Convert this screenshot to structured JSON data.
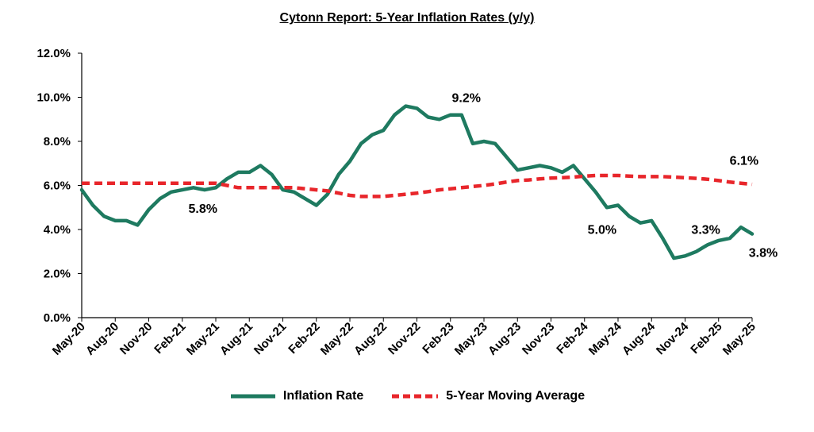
{
  "chart_data": {
    "type": "line",
    "title": "Cytonn Report: 5-Year Inflation Rates (y/y)",
    "xlabel": "",
    "ylabel": "",
    "ylim": [
      0,
      12
    ],
    "y_ticks": [
      "0.0%",
      "2.0%",
      "4.0%",
      "6.0%",
      "8.0%",
      "10.0%",
      "12.0%"
    ],
    "x_ticks": [
      "May-20",
      "Aug-20",
      "Nov-20",
      "Feb-21",
      "May-21",
      "Aug-21",
      "Nov-21",
      "Feb-22",
      "May-22",
      "Aug-22",
      "Nov-22",
      "Feb-23",
      "May-23",
      "Aug-23",
      "Nov-23",
      "Feb-24",
      "May-24",
      "Aug-24",
      "Nov-24",
      "Feb-25",
      "May-25"
    ],
    "months": [
      "May-20",
      "Jun-20",
      "Jul-20",
      "Aug-20",
      "Sep-20",
      "Oct-20",
      "Nov-20",
      "Dec-20",
      "Jan-21",
      "Feb-21",
      "Mar-21",
      "Apr-21",
      "May-21",
      "Jun-21",
      "Jul-21",
      "Aug-21",
      "Sep-21",
      "Oct-21",
      "Nov-21",
      "Dec-21",
      "Jan-22",
      "Feb-22",
      "Mar-22",
      "Apr-22",
      "May-22",
      "Jun-22",
      "Jul-22",
      "Aug-22",
      "Sep-22",
      "Oct-22",
      "Nov-22",
      "Dec-22",
      "Jan-23",
      "Feb-23",
      "Mar-23",
      "Apr-23",
      "May-23",
      "Jun-23",
      "Jul-23",
      "Aug-23",
      "Sep-23",
      "Oct-23",
      "Nov-23",
      "Dec-23",
      "Jan-24",
      "Feb-24",
      "Mar-24",
      "Apr-24",
      "May-24",
      "Jun-24",
      "Jul-24",
      "Aug-24",
      "Sep-24",
      "Oct-24",
      "Nov-24",
      "Dec-24",
      "Jan-25",
      "Feb-25",
      "Mar-25",
      "Apr-25",
      "May-25"
    ],
    "series": [
      {
        "name": "Inflation Rate",
        "color": "#1e7a60",
        "style": "solid",
        "values": [
          5.8,
          5.1,
          4.6,
          4.4,
          4.4,
          4.2,
          4.9,
          5.4,
          5.7,
          5.8,
          5.9,
          5.8,
          5.9,
          6.3,
          6.6,
          6.6,
          6.9,
          6.5,
          5.8,
          5.7,
          5.4,
          5.1,
          5.6,
          6.5,
          7.1,
          7.9,
          8.3,
          8.5,
          9.2,
          9.6,
          9.5,
          9.1,
          9.0,
          9.2,
          9.2,
          7.9,
          8.0,
          7.9,
          7.3,
          6.7,
          6.8,
          6.9,
          6.8,
          6.6,
          6.9,
          6.3,
          5.7,
          5.0,
          5.1,
          4.6,
          4.3,
          4.4,
          3.6,
          2.7,
          2.8,
          3.0,
          3.3,
          3.5,
          3.6,
          4.1,
          3.8
        ]
      },
      {
        "name": "5-Year Moving Average",
        "color": "#e8262b",
        "style": "dashed",
        "values": [
          6.1,
          6.1,
          6.1,
          6.1,
          6.1,
          6.1,
          6.1,
          6.1,
          6.1,
          6.1,
          6.1,
          6.1,
          6.1,
          6.0,
          5.9,
          5.9,
          5.9,
          5.9,
          5.9,
          5.9,
          5.85,
          5.8,
          5.75,
          5.65,
          5.55,
          5.5,
          5.5,
          5.5,
          5.55,
          5.6,
          5.65,
          5.72,
          5.8,
          5.85,
          5.9,
          5.95,
          6.0,
          6.07,
          6.15,
          6.22,
          6.25,
          6.3,
          6.33,
          6.35,
          6.38,
          6.42,
          6.45,
          6.45,
          6.45,
          6.42,
          6.4,
          6.4,
          6.4,
          6.38,
          6.35,
          6.32,
          6.28,
          6.22,
          6.15,
          6.1,
          6.05
        ]
      }
    ],
    "annotations": [
      {
        "text": "5.8%",
        "month": "Feb-21",
        "value": 5.8
      },
      {
        "text": "9.2%",
        "month": "Feb-23",
        "value": 9.2
      },
      {
        "text": "5.0%",
        "month": "Apr-24",
        "value": 5.0
      },
      {
        "text": "3.3%",
        "month": "Jan-25",
        "value": 3.3
      },
      {
        "text": "6.1%",
        "month": "Apr-25",
        "value": 6.1
      },
      {
        "text": "3.8%",
        "month": "May-25",
        "value": 3.8
      }
    ],
    "grid": false,
    "legend_position": "bottom"
  }
}
